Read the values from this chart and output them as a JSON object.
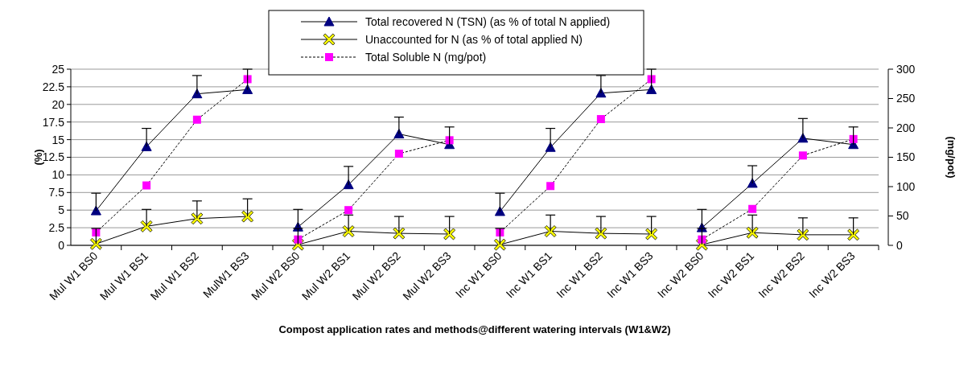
{
  "chart_data": {
    "type": "line",
    "xlabel": "Compost application rates and methods@different watering intervals (W1&W2)",
    "ylabel": "(%)",
    "y2label": "(mg/pot)",
    "categories": [
      "Mul W1 BS0",
      "Mul W1 BS1",
      "Mul W1 BS2",
      "MulW1 BS3",
      "Mul W2 BS0",
      "Mul W2 BS1",
      "Mul W2 BS2",
      "Mul W2 BS3",
      "Inc W1 BS0",
      "Inc W1 BS1",
      "Inc W1 BS2",
      "Inc W1 BS3",
      "Inc W2 BS0",
      "Inc W2 BS1",
      "Inc W2 BS2",
      "Inc W2 BS3"
    ],
    "ylim": [
      0,
      25
    ],
    "yticks": [
      0,
      2.5,
      5,
      7.5,
      10,
      12.5,
      15,
      17.5,
      20,
      22.5,
      25
    ],
    "y2lim": [
      0,
      300
    ],
    "y2ticks": [
      0,
      50,
      100,
      150,
      200,
      250,
      300
    ],
    "grid": "y",
    "legend": "top",
    "series": [
      {
        "name": "Total recovered N (TSN) (as % of total N applied)",
        "color": "#000080",
        "marker": "triangle",
        "line_style": "solid",
        "x": [
          "Mul W1 BS0",
          "Mul W1 BS1",
          "Mul W1 BS2",
          "MulW1 BS3"
        ],
        "values": [
          4.9,
          14.0,
          21.5,
          22.1
        ],
        "errors": [
          [
            4.9,
            7.4
          ],
          [
            14.0,
            16.6
          ],
          [
            21.5,
            24.1
          ],
          [
            22.1,
            25.0
          ]
        ]
      },
      {
        "color": "#000080",
        "marker": "triangle",
        "line_style": "solid",
        "x": [
          "Mul W2 BS0",
          "Mul W2 BS1",
          "Mul W2 BS2",
          "Mul W2 BS3"
        ],
        "values": [
          2.6,
          8.6,
          15.8,
          14.3
        ],
        "errors": [
          [
            2.6,
            5.1
          ],
          [
            8.6,
            11.2
          ],
          [
            15.8,
            18.2
          ],
          [
            14.3,
            16.8
          ]
        ]
      },
      {
        "color": "#000080",
        "marker": "triangle",
        "line_style": "solid",
        "x": [
          "Inc W1 BS0",
          "Inc W1 BS1",
          "Inc W1 BS2",
          "Inc W1 BS3"
        ],
        "values": [
          4.8,
          13.9,
          21.6,
          22.1
        ],
        "errors": [
          [
            4.8,
            7.4
          ],
          [
            13.9,
            16.6
          ],
          [
            21.6,
            24.1
          ],
          [
            22.1,
            25.0
          ]
        ]
      },
      {
        "color": "#000080",
        "marker": "triangle",
        "line_style": "solid",
        "x": [
          "Inc W2 BS0",
          "Inc W2 BS1",
          "Inc W2 BS2",
          "Inc W2 BS3"
        ],
        "values": [
          2.5,
          8.8,
          15.2,
          14.3
        ],
        "errors": [
          [
            2.5,
            5.1
          ],
          [
            8.8,
            11.3
          ],
          [
            15.2,
            18.0
          ],
          [
            14.3,
            16.8
          ]
        ]
      },
      {
        "name": "Unaccounted for N (as % of total applied N)",
        "color": "#ffff00",
        "marker": "cross",
        "line_style": "solid",
        "x": [
          "Mul W1 BS0",
          "Mul W1 BS1",
          "Mul W1 BS2",
          "MulW1 BS3"
        ],
        "values": [
          0.2,
          2.7,
          3.8,
          4.1
        ],
        "errors": [
          [
            0.2,
            2.4
          ],
          [
            2.7,
            5.1
          ],
          [
            3.8,
            6.3
          ],
          [
            4.1,
            6.6
          ]
        ]
      },
      {
        "color": "#ffff00",
        "marker": "cross",
        "line_style": "solid",
        "x": [
          "Mul W2 BS0",
          "Mul W2 BS1",
          "Mul W2 BS2",
          "Mul W2 BS3"
        ],
        "values": [
          0.1,
          2.0,
          1.7,
          1.6
        ],
        "errors": [
          [
            0.1,
            2.4
          ],
          [
            2.0,
            4.3
          ],
          [
            1.7,
            4.1
          ],
          [
            1.6,
            4.1
          ]
        ]
      },
      {
        "color": "#ffff00",
        "marker": "cross",
        "line_style": "solid",
        "x": [
          "Inc W1 BS0",
          "Inc W1 BS1",
          "Inc W1 BS2",
          "Inc W1 BS3"
        ],
        "values": [
          0.1,
          2.0,
          1.7,
          1.6
        ],
        "errors": [
          [
            0.1,
            2.4
          ],
          [
            2.0,
            4.3
          ],
          [
            1.7,
            4.1
          ],
          [
            1.6,
            4.1
          ]
        ]
      },
      {
        "color": "#ffff00",
        "marker": "cross",
        "line_style": "solid",
        "x": [
          "Inc W2 BS0",
          "Inc W2 BS1",
          "Inc W2 BS2",
          "Inc W2 BS3"
        ],
        "values": [
          0.1,
          1.8,
          1.5,
          1.5
        ],
        "errors": [
          [
            0.1,
            2.4
          ],
          [
            1.8,
            4.3
          ],
          [
            1.5,
            3.9
          ],
          [
            1.5,
            3.9
          ]
        ]
      },
      {
        "name": "Total Soluble N (mg/pot)",
        "color": "#ff00ff",
        "marker": "square",
        "line_style": "dashed",
        "axis": "y2",
        "x": [
          "Mul W1 BS0",
          "Mul W1 BS1",
          "Mul W1 BS2",
          "MulW1 BS3"
        ],
        "values": [
          22,
          102,
          214,
          283
        ]
      },
      {
        "color": "#ff00ff",
        "marker": "square",
        "line_style": "dashed",
        "axis": "y2",
        "x": [
          "Mul W2 BS0",
          "Mul W2 BS1",
          "Mul W2 BS2",
          "Mul W2 BS3"
        ],
        "values": [
          10,
          60,
          156,
          179
        ]
      },
      {
        "color": "#ff00ff",
        "marker": "square",
        "line_style": "dashed",
        "axis": "y2",
        "x": [
          "Inc W1 BS0",
          "Inc W1 BS1",
          "Inc W1 BS2",
          "Inc W1 BS3"
        ],
        "values": [
          22,
          101,
          215,
          283
        ]
      },
      {
        "color": "#ff00ff",
        "marker": "square",
        "line_style": "dashed",
        "axis": "y2",
        "x": [
          "Inc W2 BS0",
          "Inc W2 BS1",
          "Inc W2 BS2",
          "Inc W2 BS3"
        ],
        "values": [
          10,
          62,
          153,
          181
        ]
      }
    ]
  }
}
